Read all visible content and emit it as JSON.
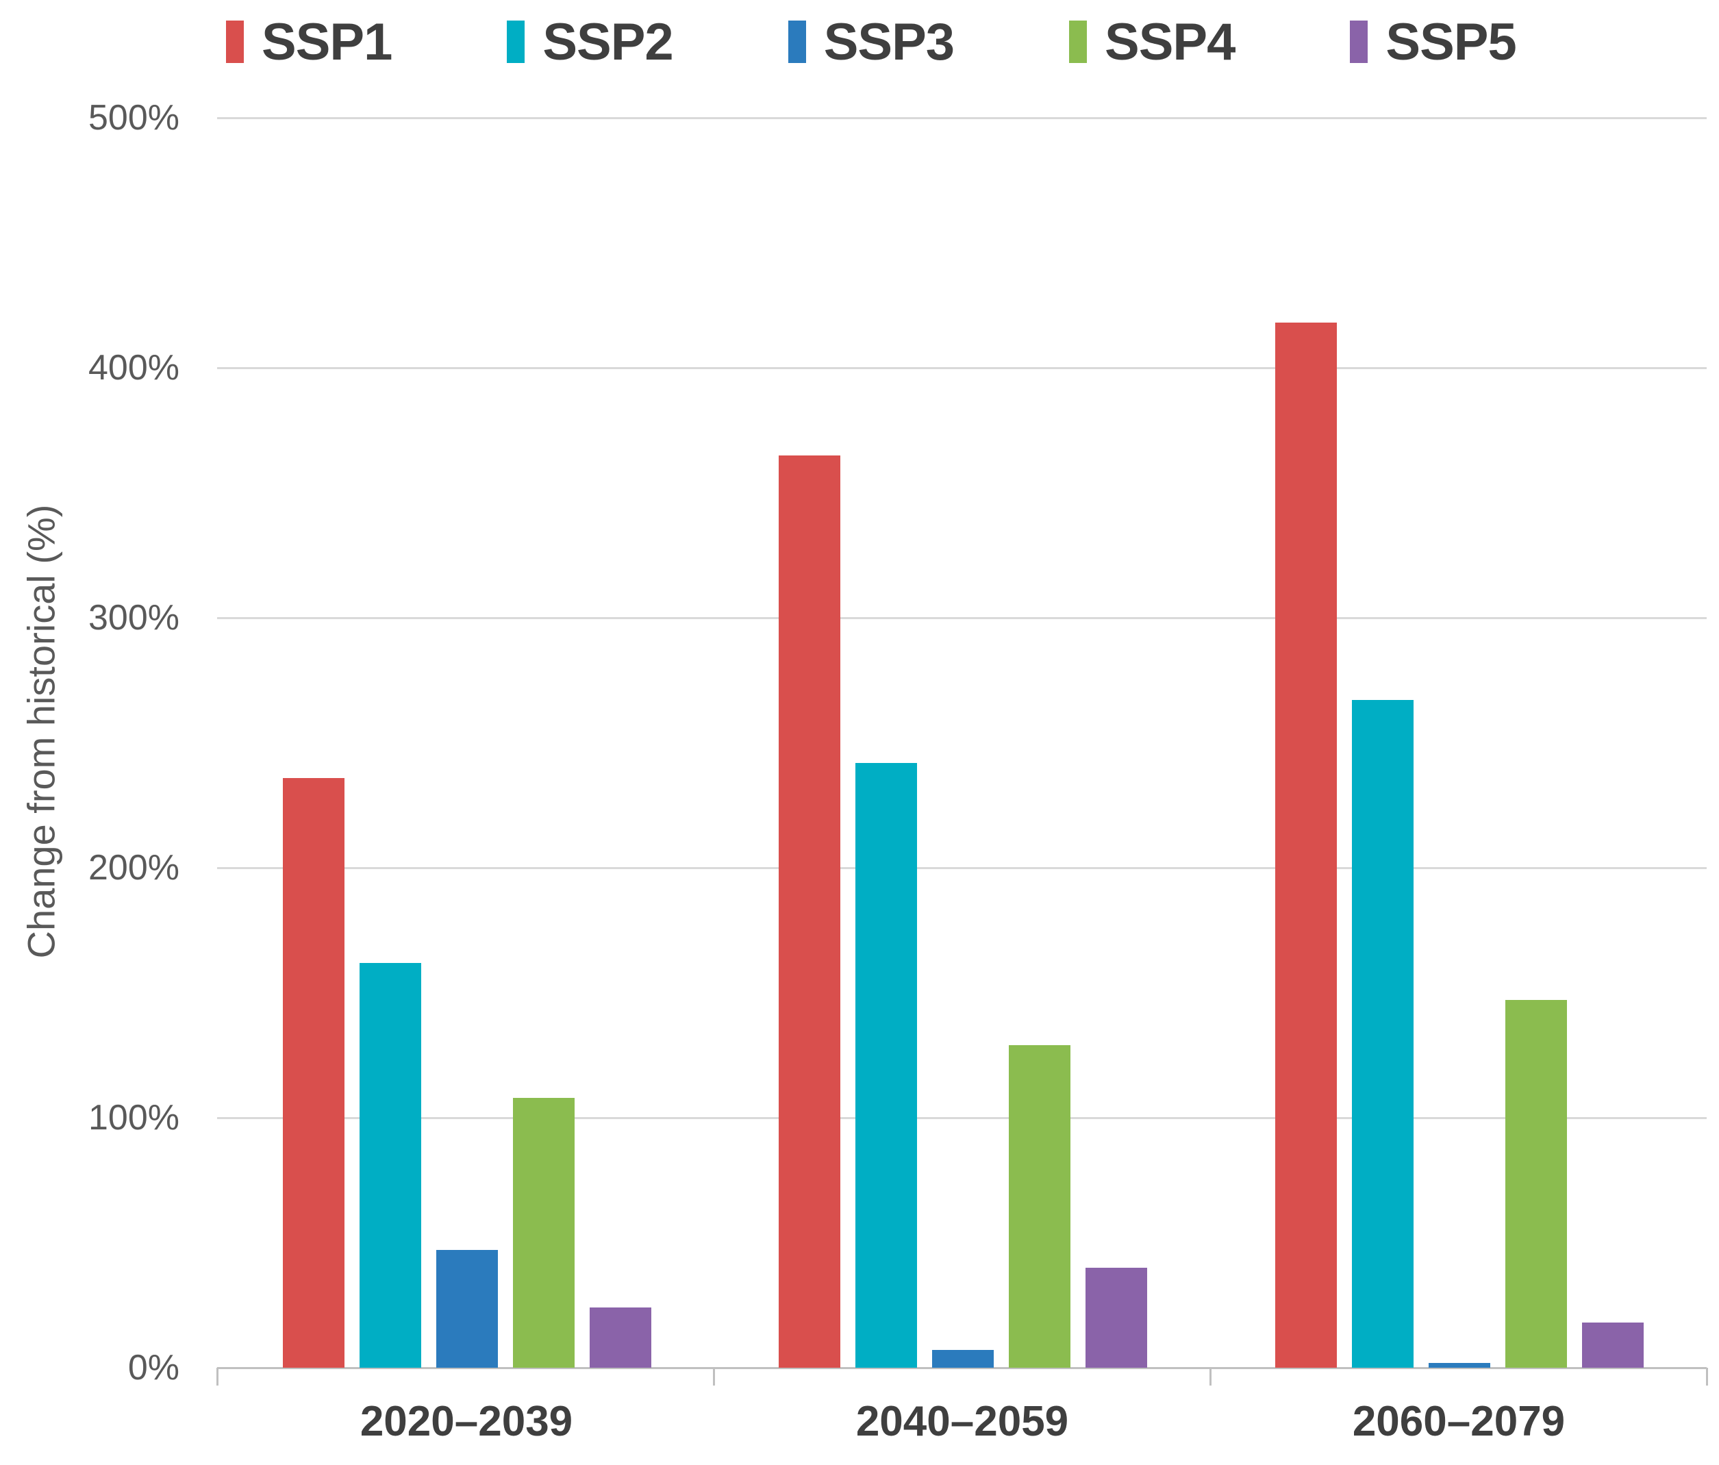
{
  "chart_data": {
    "type": "bar",
    "title": "",
    "xlabel": "",
    "ylabel": "Change from historical (%)",
    "categories": [
      "2020–2039",
      "2040–2059",
      "2060–2079"
    ],
    "series": [
      {
        "name": "SSP1",
        "color": "#D94F4D",
        "values": [
          236,
          365,
          418
        ]
      },
      {
        "name": "SSP2",
        "color": "#00AEC4",
        "values": [
          162,
          242,
          267
        ]
      },
      {
        "name": "SSP3",
        "color": "#2B7BBD",
        "values": [
          47,
          7,
          2
        ]
      },
      {
        "name": "SSP4",
        "color": "#8BBC4F",
        "values": [
          108,
          129,
          147
        ]
      },
      {
        "name": "SSP5",
        "color": "#8A63A9",
        "values": [
          24,
          40,
          18
        ]
      }
    ],
    "ylim": [
      0,
      500
    ],
    "ytick_values": [
      0,
      100,
      200,
      300,
      400,
      500
    ],
    "ytick_labels": [
      "0%",
      "100%",
      "200%",
      "300%",
      "400%",
      "500%"
    ],
    "grid": true,
    "legend_position": "top"
  },
  "ui": {
    "background": "#FFFFFF",
    "legend_text_color": "#3F3F3F",
    "category_text_color": "#3F3F3F",
    "tick_text_color": "#595959",
    "gridline_color": "#D9D9D9",
    "axis_line_color": "#C0C0C0"
  }
}
